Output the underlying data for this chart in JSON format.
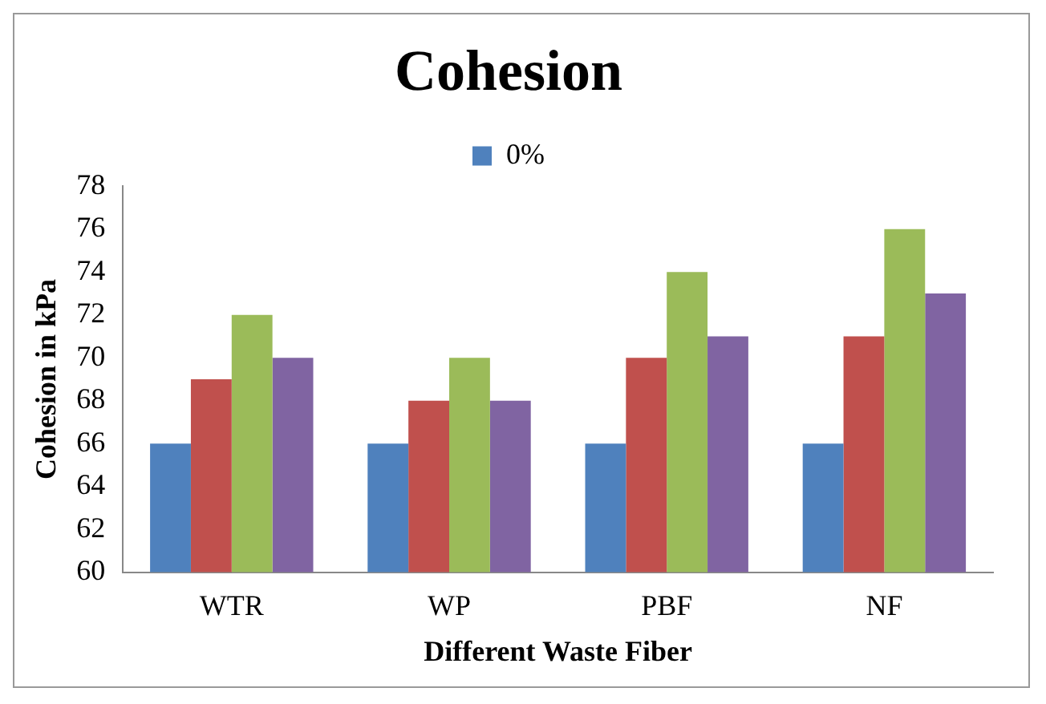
{
  "chart_data": {
    "type": "bar",
    "title": "Cohesion",
    "xlabel": "Different Waste Fiber",
    "ylabel": "Cohesion in kPa",
    "categories": [
      "WTR",
      "WP",
      "PBF",
      "NF"
    ],
    "series": [
      {
        "name": "0%",
        "color": "#4f81bd",
        "values": [
          66,
          66,
          66,
          66
        ]
      },
      {
        "color": "#c0504d",
        "values": [
          69,
          68,
          70,
          71
        ]
      },
      {
        "color": "#9bbb59",
        "values": [
          72,
          70,
          74,
          76
        ]
      },
      {
        "color": "#8064a2",
        "values": [
          70,
          68,
          71,
          73
        ]
      }
    ],
    "ylim": [
      60,
      78
    ],
    "yticks": [
      60,
      62,
      64,
      66,
      68,
      70,
      72,
      74,
      76,
      78
    ],
    "grid": false,
    "legend": "top"
  }
}
